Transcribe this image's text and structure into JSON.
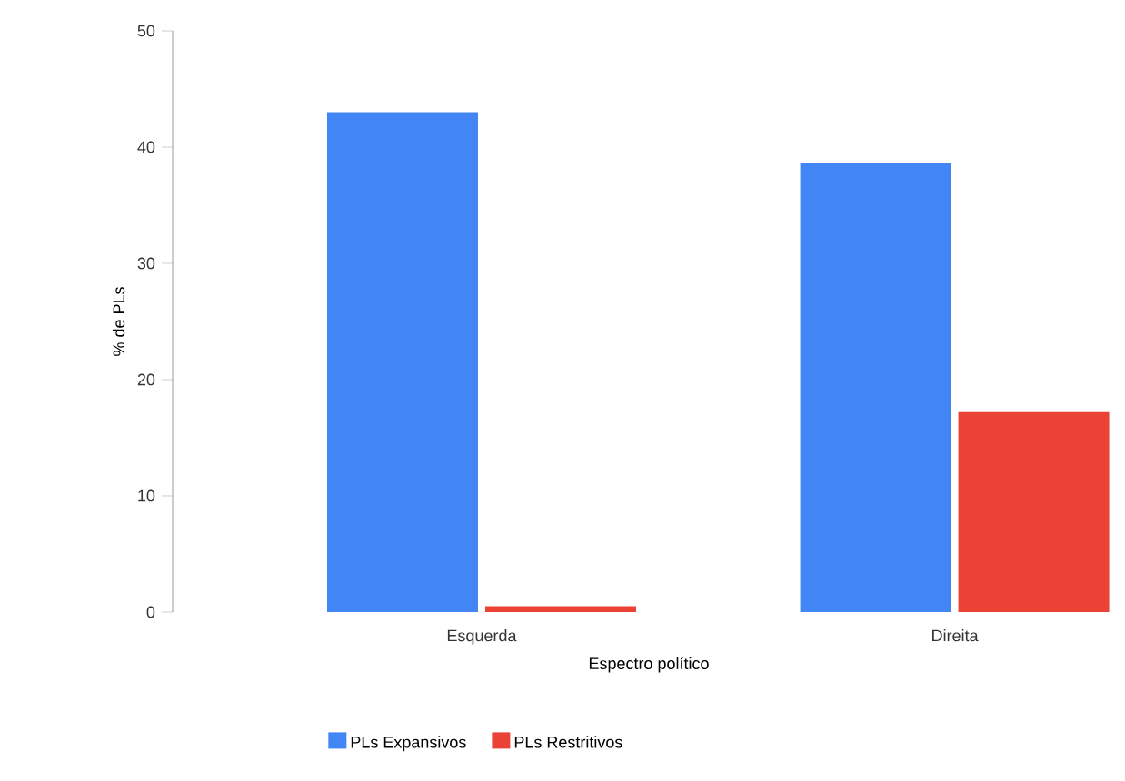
{
  "chart_data": {
    "type": "bar",
    "xlabel": "Espectro político",
    "ylabel": "% de PLs",
    "categories": [
      "Esquerda",
      "Direita"
    ],
    "series": [
      {
        "name": "PLs Expansivos",
        "color": "#4285f4",
        "values": [
          43,
          38.6
        ]
      },
      {
        "name": "PLs Restritivos",
        "color": "#ea4335",
        "values": [
          0.5,
          17.2
        ]
      }
    ],
    "ylim": [
      0,
      50
    ],
    "yticks": [
      0,
      10,
      20,
      30,
      40,
      50
    ],
    "legend": "bottom"
  }
}
